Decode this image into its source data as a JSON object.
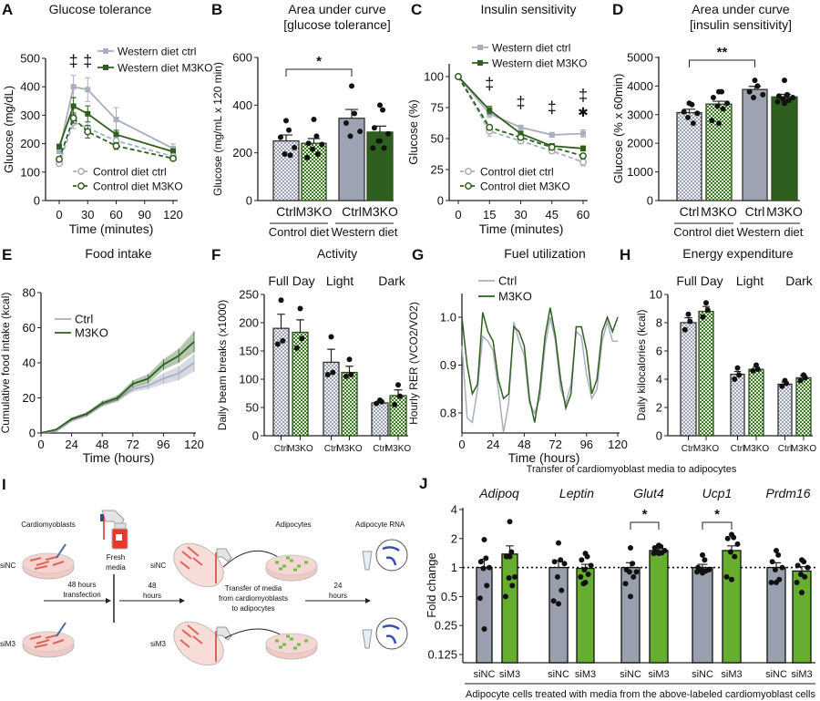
{
  "colors": {
    "gray": "#9ea3b4",
    "gray_line": "#a9aec0",
    "dark_green": "#2f5f1f",
    "light_green": "#67ad2f",
    "j_gray": "#9a9fb0",
    "axis": "#222222"
  },
  "chart_data": [
    {
      "letter": "A",
      "type": "line",
      "title": "Glucose tolerance",
      "xlabel": "Time (minutes)",
      "ylabel": "Glucose (mg/dL)",
      "x": [
        0,
        15,
        30,
        60,
        120
      ],
      "xticks": [
        0,
        30,
        60,
        90,
        120
      ],
      "yticks": [
        0,
        100,
        200,
        300,
        400,
        500
      ],
      "ylim": [
        0,
        500
      ],
      "grid": false,
      "series": [
        {
          "name": "Western diet ctrl",
          "values": [
            175,
            400,
            390,
            285,
            183
          ],
          "sem": [
            10,
            40,
            42,
            42,
            16
          ],
          "color": "#a9aec0",
          "style": "solid",
          "marker": "square"
        },
        {
          "name": "Western diet M3KO",
          "values": [
            190,
            332,
            305,
            232,
            172
          ],
          "sem": [
            8,
            30,
            28,
            15,
            10
          ],
          "color": "#2f5f1f",
          "style": "solid",
          "marker": "square"
        },
        {
          "name": "Control diet ctrl",
          "values": [
            130,
            275,
            255,
            210,
            155
          ],
          "sem": [
            8,
            22,
            20,
            12,
            8
          ],
          "color": "#a9aec0",
          "style": "dashed",
          "marker": "circle-open"
        },
        {
          "name": "Control diet M3KO",
          "values": [
            145,
            290,
            242,
            192,
            148
          ],
          "sem": [
            8,
            18,
            22,
            12,
            6
          ],
          "color": "#2f5f1f",
          "style": "dashed",
          "marker": "circle-open"
        }
      ],
      "annotations": [
        {
          "text": "‡",
          "x": 15,
          "y": 490
        },
        {
          "text": "‡",
          "x": 30,
          "y": 490
        }
      ]
    },
    {
      "letter": "B",
      "type": "bar",
      "title_lines": [
        "Area under curve",
        "[glucose tolerance]"
      ],
      "ylabel": "Glucose (mg/mL x 120 min)",
      "yticks": [
        0,
        200,
        400,
        600
      ],
      "ylim": [
        0,
        600
      ],
      "bars": [
        {
          "label": "Ctrl",
          "value": 250,
          "sem": 25,
          "fill": "check-gray",
          "points": [
            335,
            295,
            265,
            222,
            195,
            190
          ]
        },
        {
          "label": "M3KO",
          "value": 240,
          "sem": 20,
          "fill": "check-green",
          "points": [
            340,
            270,
            240,
            235,
            215,
            195,
            180
          ]
        },
        {
          "label": "Ctrl",
          "value": 345,
          "sem": 37,
          "fill": "solid-gray",
          "points": [
            480,
            365,
            325,
            290,
            270
          ]
        },
        {
          "label": "M3KO",
          "value": 287,
          "sem": 25,
          "fill": "solid-green",
          "points": [
            400,
            380,
            305,
            280,
            250,
            220,
            220,
            250
          ]
        }
      ],
      "groups": [
        "Control diet",
        "Western diet"
      ],
      "significance": [
        {
          "from": 0,
          "to": 2,
          "label": "*"
        }
      ]
    },
    {
      "letter": "C",
      "type": "line",
      "title": "Insulin sensitivity",
      "xlabel": "Time (minutes)",
      "ylabel": "Glucose (%)",
      "x": [
        0,
        15,
        30,
        45,
        60
      ],
      "xticks": [
        0,
        15,
        30,
        45,
        60
      ],
      "yticks": [
        0,
        25,
        50,
        75,
        100
      ],
      "ylim": [
        0,
        105
      ],
      "grid": false,
      "series": [
        {
          "name": "Western diet ctrl",
          "values": [
            100,
            70,
            59,
            53,
            54
          ],
          "sem": [
            0,
            3,
            1,
            2,
            3
          ],
          "color": "#a9aec0",
          "style": "solid",
          "marker": "square"
        },
        {
          "name": "Western diet M3KO",
          "values": [
            100,
            73,
            54,
            44,
            42
          ],
          "sem": [
            0,
            3,
            2,
            2,
            2
          ],
          "color": "#2f5f1f",
          "style": "solid",
          "marker": "square"
        },
        {
          "name": "Control diet ctrl",
          "values": [
            100,
            56,
            48,
            40,
            31
          ],
          "sem": [
            0,
            4,
            2,
            2,
            3
          ],
          "color": "#a9aec0",
          "style": "dashed",
          "marker": "circle-open"
        },
        {
          "name": "Control diet M3KO",
          "values": [
            100,
            59,
            51,
            43,
            36
          ],
          "sem": [
            0,
            2,
            2,
            2,
            2
          ],
          "color": "#2f5f1f",
          "style": "dashed",
          "marker": "circle-open"
        }
      ],
      "annotations": [
        {
          "text": "‡",
          "x": 15,
          "y": 94
        },
        {
          "text": "‡",
          "x": 30,
          "y": 79
        },
        {
          "text": "‡",
          "x": 45,
          "y": 75
        },
        {
          "text": "‡",
          "x": 60,
          "y": 85
        },
        {
          "text": "✱",
          "x": 60,
          "y": 72
        }
      ]
    },
    {
      "letter": "D",
      "type": "bar",
      "title_lines": [
        "Area under curve",
        "[insulin sensitivity]"
      ],
      "ylabel": "Glucose (% x 60min)",
      "yticks": [
        0,
        1000,
        2000,
        3000,
        4000,
        5000
      ],
      "ylim": [
        0,
        5000
      ],
      "bars": [
        {
          "label": "Ctrl",
          "value": 3070,
          "sem": 120,
          "fill": "check-gray",
          "points": [
            3400,
            3350,
            3100,
            3050,
            2900,
            2700
          ]
        },
        {
          "label": "M3KO",
          "value": 3370,
          "sem": 100,
          "fill": "check-green",
          "points": [
            3800,
            3800,
            3600,
            3400,
            3300,
            3200,
            2800,
            2700
          ]
        },
        {
          "label": "Ctrl",
          "value": 3880,
          "sem": 110,
          "fill": "solid-gray",
          "points": [
            4200,
            4000,
            3800,
            3700,
            3600
          ]
        },
        {
          "label": "M3KO",
          "value": 3620,
          "sem": 90,
          "fill": "solid-green",
          "points": [
            4200,
            3700,
            3650,
            3600,
            3550,
            3500,
            3450,
            3400
          ]
        }
      ],
      "groups": [
        "Control diet",
        "Western diet"
      ],
      "significance": [
        {
          "from": 0,
          "to": 2,
          "label": "**"
        }
      ]
    },
    {
      "letter": "E",
      "type": "area",
      "title": "Food intake",
      "xlabel": "Time (hours)",
      "ylabel": "Cumulative food intake (kcal)",
      "x": [
        0,
        12,
        24,
        36,
        48,
        60,
        72,
        84,
        96,
        108,
        120
      ],
      "xticks": [
        0,
        24,
        48,
        72,
        96,
        120
      ],
      "yticks": [
        0,
        20,
        40,
        60,
        80
      ],
      "ylim": [
        0,
        80
      ],
      "series": [
        {
          "name": "Ctrl",
          "values": [
            0,
            1,
            7,
            10,
            16,
            19,
            25,
            27,
            31,
            34,
            40
          ],
          "sem": [
            0,
            0.3,
            0.6,
            0.8,
            1,
            1.2,
            1.5,
            2,
            3,
            4,
            5
          ],
          "color": "#a9aec0"
        },
        {
          "name": "M3KO",
          "values": [
            0,
            2,
            8,
            11,
            17,
            20,
            28,
            31,
            39,
            44,
            52
          ],
          "sem": [
            0,
            0.4,
            0.8,
            1,
            1.3,
            1.5,
            2,
            2.5,
            3,
            4,
            6
          ],
          "color": "#2f5f1f"
        }
      ]
    },
    {
      "letter": "F",
      "type": "bar",
      "title": "Activity",
      "ylabel": "Daily beam breaks (x1000)",
      "yticks": [
        0,
        50,
        100,
        150,
        200,
        250
      ],
      "ylim": [
        0,
        250
      ],
      "subgroups": [
        "Full Day",
        "Light",
        "Dark"
      ],
      "bars": [
        {
          "label": "Ctrl",
          "value": 190,
          "sem": 25,
          "fill": "check-gray",
          "points": [
            240,
            168,
            162
          ]
        },
        {
          "label": "M3KO",
          "value": 183,
          "sem": 22,
          "fill": "check-green",
          "points": [
            225,
            172,
            155
          ]
        },
        {
          "label": "Ctrl",
          "value": 130,
          "sem": 23,
          "fill": "check-gray",
          "points": [
            175,
            112,
            108
          ]
        },
        {
          "label": "M3KO",
          "value": 112,
          "sem": 11,
          "fill": "check-green",
          "points": [
            135,
            108,
            105
          ]
        },
        {
          "label": "Ctrl",
          "value": 58,
          "sem": 3,
          "fill": "check-gray",
          "points": [
            63,
            60,
            57
          ]
        },
        {
          "label": "M3KO",
          "value": 71,
          "sem": 10,
          "fill": "check-green",
          "points": [
            90,
            70,
            55
          ]
        }
      ]
    },
    {
      "letter": "G",
      "type": "line",
      "title": "Fuel utilization",
      "xlabel": "Time (hours)",
      "ylabel": "Hourly RER (VCO2/VO2)",
      "x": [
        0,
        4,
        8,
        12,
        16,
        20,
        24,
        28,
        32,
        36,
        40,
        44,
        48,
        52,
        56,
        60,
        64,
        68,
        72,
        76,
        80,
        84,
        88,
        92,
        96,
        100,
        104,
        108,
        112,
        116,
        120
      ],
      "xticks": [
        0,
        24,
        48,
        72,
        96,
        120
      ],
      "yticks": [
        "0.8",
        "0.9",
        "1.0"
      ],
      "ylim": [
        0.757,
        1.05
      ],
      "series": [
        {
          "name": "Ctrl",
          "color": "#a9aec0",
          "values": [
            0.94,
            0.79,
            0.78,
            0.85,
            0.96,
            0.95,
            0.93,
            0.85,
            0.76,
            0.82,
            0.99,
            0.95,
            0.92,
            0.82,
            0.8,
            0.83,
            0.94,
            1.0,
            0.95,
            0.85,
            0.82,
            0.86,
            0.97,
            0.96,
            0.88,
            0.83,
            0.85,
            0.95,
            0.99,
            0.95,
            0.95
          ]
        },
        {
          "name": "M3KO",
          "color": "#2f5f1f",
          "values": [
            1.0,
            0.9,
            0.84,
            0.86,
            1.01,
            0.97,
            0.95,
            0.87,
            0.83,
            0.84,
            0.98,
            0.97,
            0.94,
            0.83,
            0.78,
            0.85,
            0.96,
            1.02,
            0.96,
            0.87,
            0.81,
            0.84,
            0.98,
            0.98,
            0.93,
            0.84,
            0.87,
            0.97,
            1.0,
            0.97,
            1.0
          ]
        }
      ]
    },
    {
      "letter": "H",
      "type": "bar",
      "title": "Energy expenditure",
      "ylabel": "Daily kilocalories (kcal)",
      "yticks": [
        0,
        2,
        4,
        6,
        8,
        10
      ],
      "ylim": [
        0,
        10
      ],
      "subgroups": [
        "Full Day",
        "Light",
        "Dark"
      ],
      "bars": [
        {
          "label": "Ctrl",
          "value": 8.0,
          "sem": 0.35,
          "fill": "check-gray",
          "points": [
            8.6,
            8.1,
            7.5
          ]
        },
        {
          "label": "M3KO",
          "value": 8.8,
          "sem": 0.35,
          "fill": "check-green",
          "points": [
            9.4,
            8.9,
            8.4
          ]
        },
        {
          "label": "Ctrl",
          "value": 4.35,
          "sem": 0.2,
          "fill": "check-gray",
          "points": [
            4.8,
            4.3,
            4.0
          ]
        },
        {
          "label": "M3KO",
          "value": 4.7,
          "sem": 0.15,
          "fill": "check-green",
          "points": [
            5.0,
            4.7,
            4.6
          ]
        },
        {
          "label": "Ctrl",
          "value": 3.65,
          "sem": 0.15,
          "fill": "check-gray",
          "points": [
            3.9,
            3.7,
            3.5
          ]
        },
        {
          "label": "M3KO",
          "value": 4.1,
          "sem": 0.15,
          "fill": "check-green",
          "points": [
            4.3,
            4.1,
            3.9
          ]
        }
      ]
    },
    {
      "letter": "J",
      "type": "bar",
      "scale": "log2",
      "title": "Transfer of cardiomyoblast media to adipocytes",
      "ylabel": "Fold change",
      "yticks": [
        0.125,
        0.25,
        0.5,
        1,
        2,
        4
      ],
      "ylim": [
        0.11,
        4
      ],
      "reference_line": 1,
      "genes": [
        "Adipoq",
        "Leptin",
        "Glut4",
        "Ucp1",
        "Prdm16"
      ],
      "bars": [
        {
          "label": "siNC",
          "value": 1.0,
          "sem": 0.22,
          "fill": "j-gray",
          "points": [
            1.95,
            1.25,
            1.15,
            1.0,
            0.98,
            0.65,
            0.48,
            0.23
          ]
        },
        {
          "label": "siM3",
          "value": 1.38,
          "sem": 0.3,
          "fill": "j-green",
          "points": [
            3.0,
            1.45,
            1.3,
            0.8,
            0.78,
            0.65,
            0.5,
            1.3
          ]
        },
        {
          "label": "siNC",
          "value": 1.0,
          "sem": 0.18,
          "fill": "j-gray",
          "points": [
            1.8,
            1.2,
            1.15,
            1.1,
            0.8,
            0.58,
            0.45,
            0.42
          ]
        },
        {
          "label": "siM3",
          "value": 0.98,
          "sem": 0.1,
          "fill": "j-green",
          "points": [
            1.4,
            1.3,
            1.2,
            1.05,
            0.95,
            0.85,
            0.8,
            0.7,
            0.68
          ]
        },
        {
          "label": "siNC",
          "value": 1.0,
          "sem": 0.12,
          "fill": "j-gray",
          "points": [
            1.6,
            1.1,
            0.95,
            0.9,
            0.9,
            0.8,
            0.68,
            0.5
          ]
        },
        {
          "label": "siM3",
          "value": 1.5,
          "sem": 0.08,
          "fill": "j-green",
          "points": [
            1.7,
            1.65,
            1.6,
            1.5,
            1.45,
            1.42,
            1.4,
            1.4
          ]
        },
        {
          "label": "siNC",
          "value": 1.0,
          "sem": 0.08,
          "fill": "j-gray",
          "points": [
            1.35,
            1.2,
            1.0,
            0.95,
            0.95,
            0.92,
            0.9,
            0.88
          ]
        },
        {
          "label": "siM3",
          "value": 1.5,
          "sem": 0.18,
          "fill": "j-green",
          "points": [
            2.2,
            2.05,
            2.0,
            1.75,
            1.45,
            1.3,
            0.8,
            0.75
          ]
        },
        {
          "label": "siNC",
          "value": 1.0,
          "sem": 0.12,
          "fill": "j-gray",
          "points": [
            1.5,
            1.35,
            1.15,
            1.0,
            0.95,
            0.75,
            0.7,
            0.7
          ]
        },
        {
          "label": "siM3",
          "value": 0.92,
          "sem": 0.1,
          "fill": "j-green",
          "points": [
            1.2,
            1.15,
            1.05,
            1.0,
            0.85,
            0.8,
            0.7,
            0.55
          ]
        }
      ],
      "significance": [
        {
          "from": 4,
          "to": 5,
          "label": "*"
        },
        {
          "from": 6,
          "to": 7,
          "label": "*"
        }
      ],
      "footer": "Adipocyte cells treated with media from the above-labeled cardiomyoblast cells"
    }
  ],
  "diagram_I": {
    "letter": "I",
    "cardiomyoblasts": "Cardiomyoblasts",
    "siNC": "siNC",
    "siM3": "siM3",
    "fresh_media": [
      "Fresh",
      "media"
    ],
    "step1": [
      "48 hours",
      "transfection"
    ],
    "step2": [
      "48",
      "hours"
    ],
    "transfer": [
      "Transfer of media",
      "from cardiomyoblasts",
      "to adipocytes"
    ],
    "step3": [
      "24",
      "hours"
    ],
    "adipocytes": "Adipocytes",
    "rna": "Adipocyte RNA"
  }
}
